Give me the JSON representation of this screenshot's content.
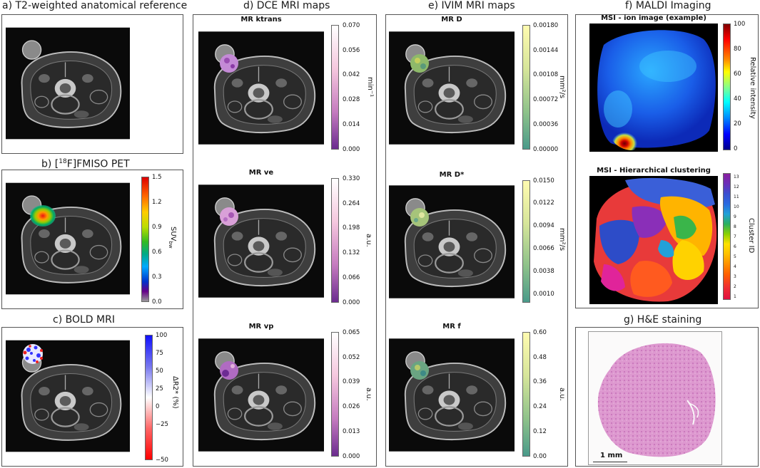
{
  "panels": {
    "a": {
      "title": "a) T2-weighted anatomical reference"
    },
    "b": {
      "title_prefix": "b) [",
      "title_sup": "18",
      "title_suffix": "F]FMISO PET",
      "colorbar": {
        "label": "SUV",
        "label_sub": "bw",
        "ticks": [
          "1.5",
          "1.2",
          "0.9",
          "0.6",
          "0.3",
          "0.0"
        ]
      }
    },
    "c": {
      "title": "c) BOLD MRI",
      "colorbar": {
        "label": "ΔR2* (%)",
        "ticks": [
          "100",
          "75",
          "50",
          "25",
          "0",
          "−25",
          "−50"
        ]
      }
    },
    "d": {
      "title": "d) DCE MRI maps",
      "maps": [
        {
          "subtitle": "MR ktrans",
          "unit": "min⁻¹",
          "ticks": [
            "0.070",
            "0.056",
            "0.042",
            "0.028",
            "0.014",
            "0.000"
          ]
        },
        {
          "subtitle": "MR ve",
          "unit": "a.u.",
          "ticks": [
            "0.330",
            "0.264",
            "0.198",
            "0.132",
            "0.066",
            "0.000"
          ]
        },
        {
          "subtitle": "MR vp",
          "unit": "a.u.",
          "ticks": [
            "0.065",
            "0.052",
            "0.039",
            "0.026",
            "0.013",
            "0.000"
          ]
        }
      ]
    },
    "e": {
      "title": "e) IVIM MRI maps",
      "maps": [
        {
          "subtitle": "MR D",
          "unit": "mm²/s",
          "ticks": [
            "0.00180",
            "0.00144",
            "0.00108",
            "0.00072",
            "0.00036",
            "0.00000"
          ]
        },
        {
          "subtitle": "MR D*",
          "unit": "mm²/s",
          "ticks": [
            "0.0150",
            "0.0122",
            "0.0094",
            "0.0066",
            "0.0038",
            "0.0010"
          ]
        },
        {
          "subtitle": "MR f",
          "unit": "a.u.",
          "ticks": [
            "0.60",
            "0.48",
            "0.36",
            "0.24",
            "0.12",
            "0.00"
          ]
        }
      ]
    },
    "f": {
      "title": "f) MALDI Imaging",
      "ion": {
        "subtitle": "MSI - ion image (example)",
        "unit": "Relative intensity",
        "ticks": [
          "100",
          "80",
          "60",
          "40",
          "20",
          "0"
        ]
      },
      "cluster": {
        "subtitle": "MSI - Hierarchical clustering",
        "unit": "Cluster ID",
        "ticks": [
          "13",
          "12",
          "11",
          "10",
          "9",
          "8",
          "7",
          "6",
          "5",
          "4",
          "3",
          "2",
          "1"
        ]
      }
    },
    "g": {
      "title": "g) H&E staining",
      "scale_label": "1 mm"
    }
  },
  "colors": {
    "mri_bg": "#0a0a0a",
    "frame": "#555555",
    "he_pink": "#d889c8"
  }
}
